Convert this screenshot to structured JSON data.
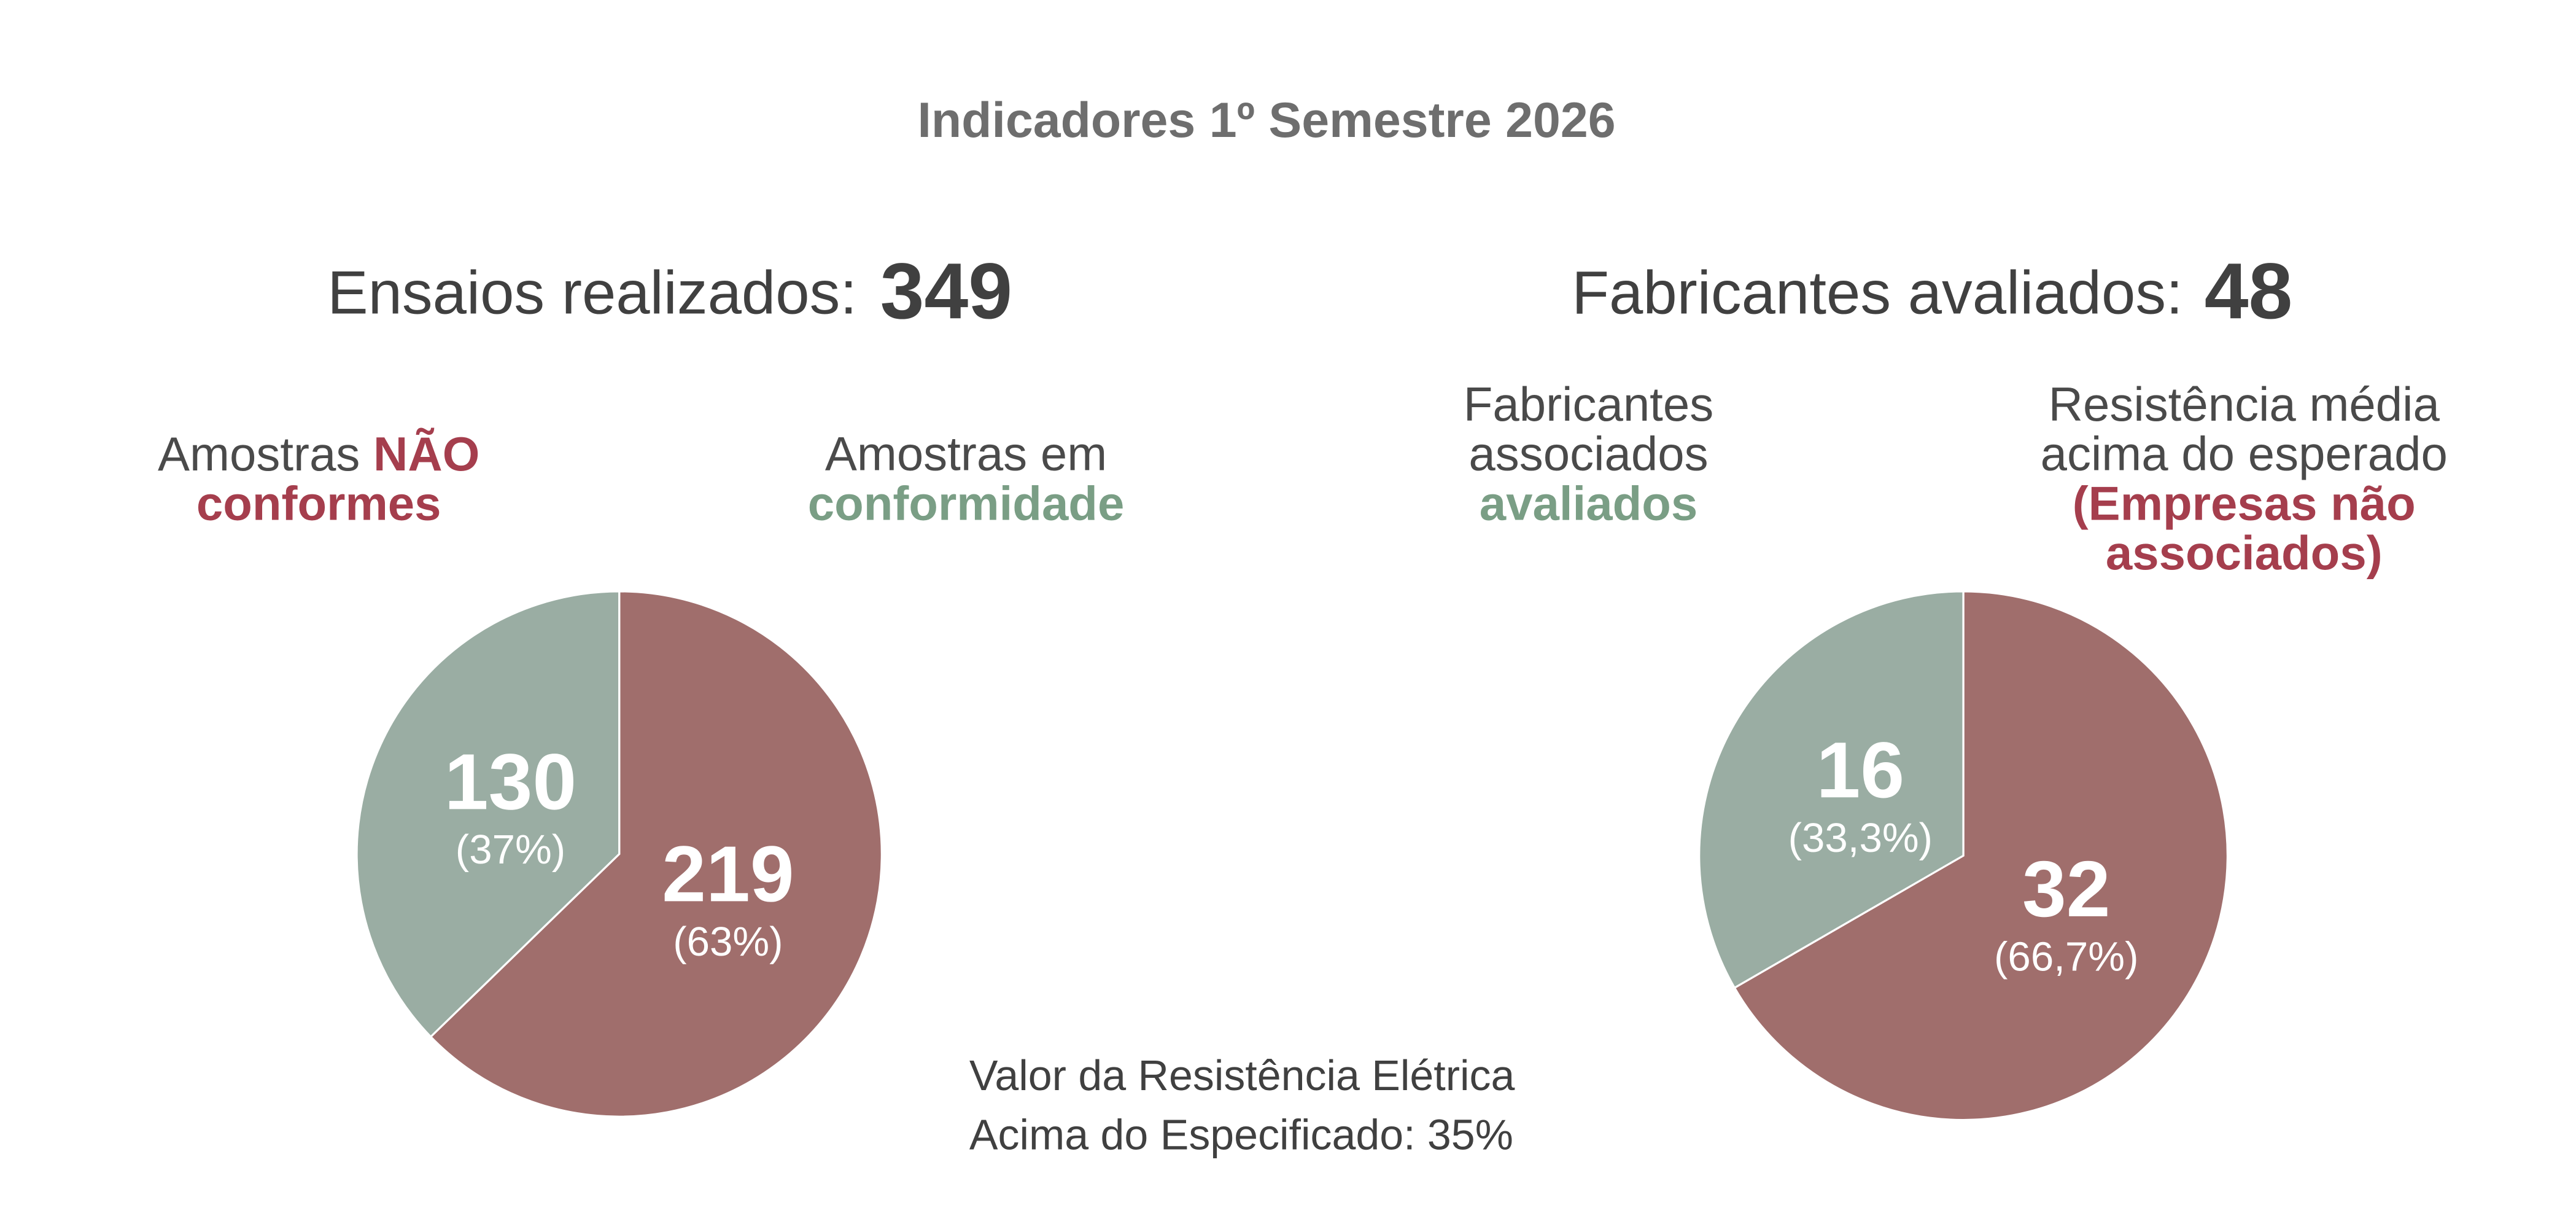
{
  "title": "Indicadores 1º Semestre 2026",
  "chart_data": [
    {
      "type": "pie",
      "heading": "Ensaios realizados:",
      "total": 349,
      "categories": [
        {
          "text": [
            "Amostras"
          ],
          "emphasis": [
            "NÃO",
            "conformes"
          ]
        },
        {
          "text": [
            "Amostras em"
          ],
          "emphasis": [
            "conformidade"
          ]
        }
      ],
      "values": [
        219,
        130
      ],
      "percents": [
        63,
        37
      ],
      "percent_labels": [
        "(63%)",
        "(37%)"
      ],
      "colors": [
        "#a06e6c",
        "#9aada3"
      ]
    },
    {
      "type": "pie",
      "heading": "Fabricantes avaliados:",
      "total": 48,
      "categories": [
        {
          "text": [
            "Resistência média",
            "acima do esperado"
          ],
          "emphasis": [
            "(Empresas não",
            "associados)"
          ]
        },
        {
          "text": [
            "Fabricantes",
            "associados"
          ],
          "emphasis": [
            "avaliados"
          ]
        }
      ],
      "values": [
        32,
        16
      ],
      "percents": [
        66.7,
        33.3
      ],
      "percent_labels": [
        "(66,7%)",
        "(33,3%)"
      ],
      "colors": [
        "#a06e6c",
        "#9aada3"
      ]
    }
  ],
  "note": [
    "Valor da Resistência Elétrica",
    "Acima do Especificado: 35%"
  ]
}
